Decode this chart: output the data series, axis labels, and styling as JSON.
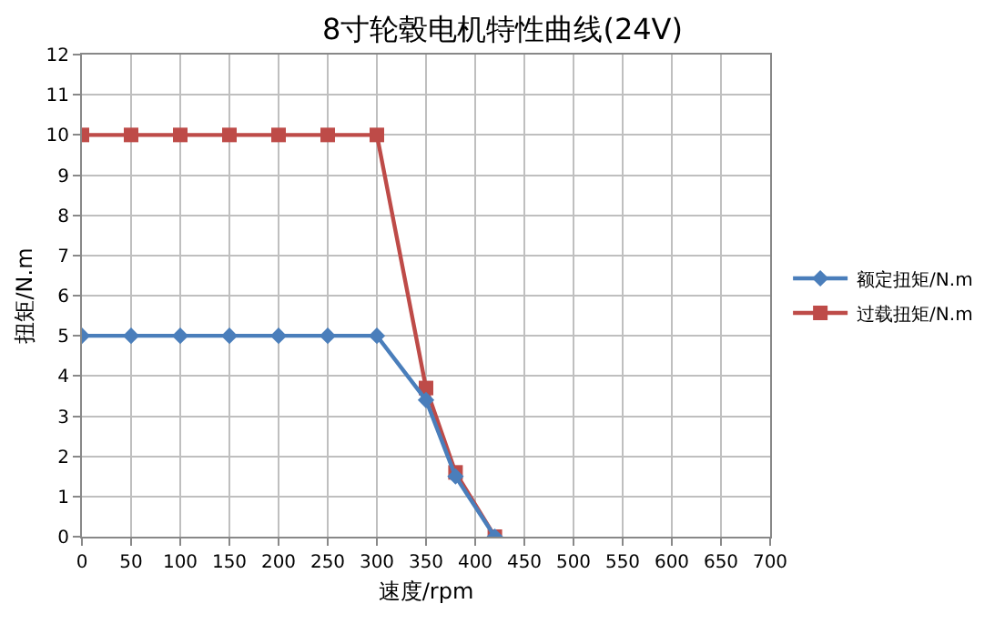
{
  "chart_data": {
    "type": "line",
    "title": "8寸轮毂电机特性曲线(24V)",
    "xlabel": "速度/rpm",
    "ylabel": "扭矩/N.m",
    "x": [
      0,
      50,
      100,
      150,
      200,
      250,
      300,
      350,
      380,
      420
    ],
    "series": [
      {
        "name": "额定扭矩/N.m",
        "color": "#4a7ebb",
        "marker": "diamond",
        "values": [
          5,
          5,
          5,
          5,
          5,
          5,
          5,
          3.4,
          1.5,
          0
        ]
      },
      {
        "name": "过载扭矩/N.m",
        "color": "#be4b48",
        "marker": "square",
        "values": [
          10,
          10,
          10,
          10,
          10,
          10,
          10,
          3.7,
          1.6,
          0
        ]
      }
    ],
    "xlim": [
      0,
      700
    ],
    "xticks": [
      0,
      50,
      100,
      150,
      200,
      250,
      300,
      350,
      400,
      450,
      500,
      550,
      600,
      650,
      700
    ],
    "ylim": [
      0,
      12
    ],
    "yticks": [
      0,
      1,
      2,
      3,
      4,
      5,
      6,
      7,
      8,
      9,
      10,
      11,
      12
    ],
    "grid": true,
    "legend": "right",
    "line_style": "solid"
  }
}
